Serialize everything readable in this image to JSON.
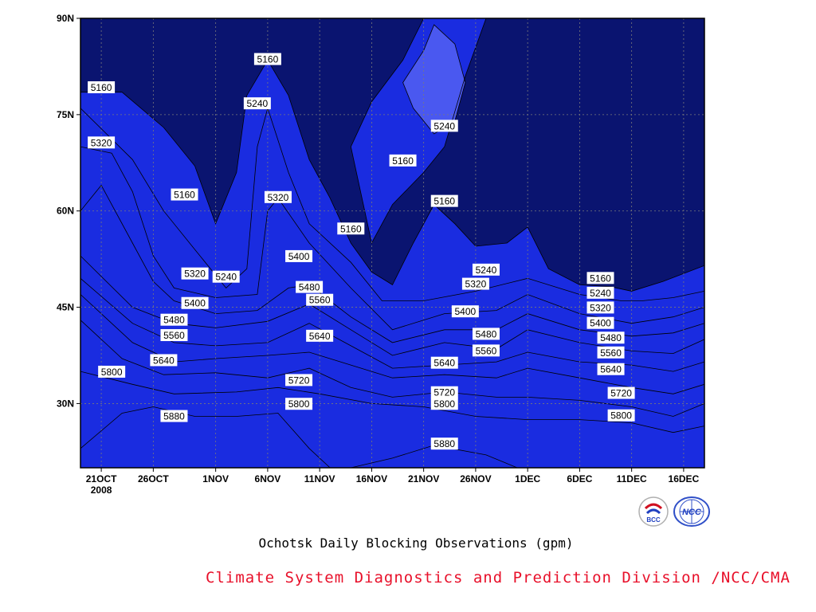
{
  "colors": {
    "bands": [
      "#0a1470",
      "#1a2ce0",
      "#4a58f0",
      "#5890e8",
      "#5cc0f8",
      "#fafa78",
      "#f8dca0",
      "#f8b078",
      "#f88858",
      "#f87078",
      "#f03848"
    ],
    "credit": "#e8102a"
  },
  "chart_data": {
    "type": "heatmap",
    "subtitle": "Ochotsk Daily Blocking Observations (gpm)",
    "credit": "Climate System Diagnostics and Prediction Division /NCC/CMA",
    "x_start_date": "2008-10-19",
    "x_end_date": "2008-12-18",
    "y_range": [
      20,
      90
    ],
    "x_ticks": [
      "21OCT",
      "26OCT",
      "1NOV",
      "6NOV",
      "11NOV",
      "16NOV",
      "21NOV",
      "26NOV",
      "1DEC",
      "6DEC",
      "11DEC",
      "16DEC"
    ],
    "x_tick_dates": [
      "2008-10-21",
      "2008-10-26",
      "2008-11-01",
      "2008-11-06",
      "2008-11-11",
      "2008-11-16",
      "2008-11-21",
      "2008-11-26",
      "2008-12-01",
      "2008-12-06",
      "2008-12-11",
      "2008-12-16"
    ],
    "x_year_label": "2008",
    "y_ticks": [
      {
        "lat": 30,
        "label": "30N"
      },
      {
        "lat": 45,
        "label": "45N"
      },
      {
        "lat": 60,
        "label": "60N"
      },
      {
        "lat": 75,
        "label": "75N"
      },
      {
        "lat": 90,
        "label": "90N"
      }
    ],
    "grid": true,
    "contour_levels": [
      5160,
      5240,
      5320,
      5400,
      5480,
      5560,
      5640,
      5720,
      5800,
      5880
    ],
    "contours": [
      {
        "level": 5880,
        "points": [
          [
            "2008-10-19",
            23
          ],
          [
            "2008-10-23",
            28.5
          ],
          [
            "2008-10-26",
            29.5
          ],
          [
            "2008-10-30",
            28
          ],
          [
            "2008-11-03",
            28
          ],
          [
            "2008-11-07",
            28.5
          ],
          [
            "2008-11-10",
            23
          ],
          [
            "2008-11-12",
            20
          ]
        ]
      },
      {
        "level": 5880,
        "points": [
          [
            "2008-11-14",
            20
          ],
          [
            "2008-11-18",
            21.5
          ],
          [
            "2008-11-22",
            23.5
          ],
          [
            "2008-11-27",
            22
          ],
          [
            "2008-11-30",
            20
          ]
        ]
      },
      {
        "level": 5800,
        "points": [
          [
            "2008-10-19",
            35
          ],
          [
            "2008-10-24",
            33
          ],
          [
            "2008-10-28",
            31.5
          ],
          [
            "2008-11-03",
            31.8
          ],
          [
            "2008-11-07",
            32.5
          ],
          [
            "2008-11-11",
            31.5
          ],
          [
            "2008-11-16",
            30
          ],
          [
            "2008-11-21",
            29.5
          ],
          [
            "2008-11-26",
            28
          ],
          [
            "2008-12-01",
            27.5
          ],
          [
            "2008-12-06",
            27.5
          ],
          [
            "2008-12-11",
            27
          ],
          [
            "2008-12-15",
            25.5
          ],
          [
            "2008-12-18",
            26.5
          ]
        ]
      },
      {
        "level": 5720,
        "points": [
          [
            "2008-10-19",
            43
          ],
          [
            "2008-10-23",
            37
          ],
          [
            "2008-10-27",
            34.5
          ],
          [
            "2008-11-01",
            34.8
          ],
          [
            "2008-11-06",
            34
          ],
          [
            "2008-11-10",
            35.5
          ],
          [
            "2008-11-14",
            32.5
          ],
          [
            "2008-11-18",
            31
          ],
          [
            "2008-11-23",
            31.8
          ],
          [
            "2008-11-28",
            31
          ],
          [
            "2008-12-01",
            31
          ],
          [
            "2008-12-06",
            30.5
          ],
          [
            "2008-12-11",
            29.5
          ],
          [
            "2008-12-15",
            28
          ],
          [
            "2008-12-18",
            30
          ]
        ]
      },
      {
        "level": 5640,
        "points": [
          [
            "2008-10-19",
            47
          ],
          [
            "2008-10-24",
            39.5
          ],
          [
            "2008-10-28",
            36.5
          ],
          [
            "2008-11-01",
            37
          ],
          [
            "2008-11-06",
            37.5
          ],
          [
            "2008-11-10",
            38
          ],
          [
            "2008-11-14",
            36
          ],
          [
            "2008-11-18",
            34
          ],
          [
            "2008-11-23",
            34.5
          ],
          [
            "2008-11-28",
            34
          ],
          [
            "2008-12-01",
            35.5
          ],
          [
            "2008-12-06",
            34
          ],
          [
            "2008-12-11",
            32.5
          ],
          [
            "2008-12-15",
            31.5
          ],
          [
            "2008-12-18",
            33
          ]
        ]
      },
      {
        "level": 5560,
        "points": [
          [
            "2008-10-19",
            49.5
          ],
          [
            "2008-10-24",
            42.5
          ],
          [
            "2008-10-28",
            39.5
          ],
          [
            "2008-11-01",
            39
          ],
          [
            "2008-11-06",
            39.5
          ],
          [
            "2008-11-10",
            42.5
          ],
          [
            "2008-11-14",
            39
          ],
          [
            "2008-11-18",
            35.5
          ],
          [
            "2008-11-23",
            36
          ],
          [
            "2008-11-28",
            36.5
          ],
          [
            "2008-12-01",
            38
          ],
          [
            "2008-12-06",
            36.5
          ],
          [
            "2008-12-11",
            36
          ],
          [
            "2008-12-15",
            35
          ],
          [
            "2008-12-18",
            36.5
          ]
        ]
      },
      {
        "level": 5480,
        "points": [
          [
            "2008-10-19",
            53
          ],
          [
            "2008-10-24",
            45
          ],
          [
            "2008-10-28",
            42.5
          ],
          [
            "2008-11-01",
            41.8
          ],
          [
            "2008-11-06",
            42.8
          ],
          [
            "2008-11-10",
            45.5
          ],
          [
            "2008-11-14",
            41.5
          ],
          [
            "2008-11-18",
            37.5
          ],
          [
            "2008-11-23",
            39.5
          ],
          [
            "2008-11-28",
            38.5
          ],
          [
            "2008-12-01",
            41.5
          ],
          [
            "2008-12-06",
            39.5
          ],
          [
            "2008-12-11",
            38.2
          ],
          [
            "2008-12-15",
            37.8
          ],
          [
            "2008-12-18",
            40
          ]
        ]
      },
      {
        "level": 5400,
        "points": [
          [
            "2008-10-19",
            60
          ],
          [
            "2008-10-21",
            64
          ],
          [
            "2008-10-24",
            55
          ],
          [
            "2008-10-26",
            49
          ],
          [
            "2008-10-28",
            46
          ],
          [
            "2008-11-01",
            44
          ],
          [
            "2008-11-05",
            44.5
          ],
          [
            "2008-11-08",
            48
          ],
          [
            "2008-11-10",
            48.5
          ],
          [
            "2008-11-14",
            43.5
          ],
          [
            "2008-11-18",
            39.5
          ],
          [
            "2008-11-23",
            41.5
          ],
          [
            "2008-11-28",
            41.5
          ],
          [
            "2008-12-01",
            44
          ],
          [
            "2008-12-06",
            41.5
          ],
          [
            "2008-12-11",
            40.5
          ],
          [
            "2008-12-15",
            41
          ],
          [
            "2008-12-18",
            42.5
          ]
        ]
      },
      {
        "level": 5320,
        "points": [
          [
            "2008-10-19",
            70
          ],
          [
            "2008-10-22",
            69
          ],
          [
            "2008-10-24",
            63
          ],
          [
            "2008-10-26",
            53
          ],
          [
            "2008-10-28",
            48
          ],
          [
            "2008-11-01",
            46.5
          ],
          [
            "2008-11-05",
            47
          ],
          [
            "2008-11-06",
            60
          ],
          [
            "2008-11-07",
            62
          ],
          [
            "2008-11-10",
            55
          ],
          [
            "2008-11-14",
            48
          ],
          [
            "2008-11-18",
            41.5
          ],
          [
            "2008-11-23",
            44
          ],
          [
            "2008-11-28",
            44.5
          ],
          [
            "2008-12-01",
            47
          ],
          [
            "2008-12-06",
            44
          ],
          [
            "2008-12-11",
            42.5
          ],
          [
            "2008-12-15",
            43.5
          ],
          [
            "2008-12-18",
            45
          ]
        ]
      },
      {
        "level": 5240,
        "points": [
          [
            "2008-10-19",
            76
          ],
          [
            "2008-10-24",
            68
          ],
          [
            "2008-10-27",
            60
          ],
          [
            "2008-10-30",
            54
          ],
          [
            "2008-11-02",
            48
          ],
          [
            "2008-11-04",
            51
          ],
          [
            "2008-11-05",
            70
          ],
          [
            "2008-11-06",
            76
          ],
          [
            "2008-11-08",
            66
          ],
          [
            "2008-11-10",
            58
          ],
          [
            "2008-11-14",
            52
          ],
          [
            "2008-11-17",
            46
          ],
          [
            "2008-11-21",
            46
          ],
          [
            "2008-11-26",
            47.5
          ],
          [
            "2008-12-01",
            49.5
          ],
          [
            "2008-12-06",
            47
          ],
          [
            "2008-12-10",
            46
          ],
          [
            "2008-12-12",
            46
          ],
          [
            "2008-12-15",
            46.5
          ],
          [
            "2008-12-18",
            47.5
          ]
        ]
      },
      {
        "level": 5160,
        "points": [
          [
            "2008-10-19",
            78.5
          ],
          [
            "2008-10-23",
            78.5
          ],
          [
            "2008-10-27",
            73
          ],
          [
            "2008-10-30",
            67
          ],
          [
            "2008-11-01",
            58
          ],
          [
            "2008-11-03",
            66
          ],
          [
            "2008-11-04",
            78
          ],
          [
            "2008-11-06",
            83.5
          ],
          [
            "2008-11-08",
            78
          ],
          [
            "2008-11-10",
            68
          ],
          [
            "2008-11-12",
            62
          ],
          [
            "2008-11-14",
            55
          ],
          [
            "2008-11-16",
            50.5
          ],
          [
            "2008-11-18",
            48.5
          ],
          [
            "2008-11-20",
            55
          ],
          [
            "2008-11-22",
            61
          ],
          [
            "2008-11-24",
            58
          ],
          [
            "2008-11-26",
            54.5
          ],
          [
            "2008-11-29",
            55
          ],
          [
            "2008-12-01",
            57.5
          ],
          [
            "2008-12-03",
            51
          ],
          [
            "2008-12-06",
            48.5
          ],
          [
            "2008-12-09",
            48.2
          ],
          [
            "2008-12-11",
            47.5
          ],
          [
            "2008-12-14",
            49
          ],
          [
            "2008-12-18",
            51.5
          ]
        ]
      },
      {
        "level": 5160,
        "points": [
          [
            "2008-11-14",
            70
          ],
          [
            "2008-11-16",
            77
          ],
          [
            "2008-11-19",
            83.5
          ],
          [
            "2008-11-21",
            90
          ],
          [
            "2008-11-27",
            90
          ],
          [
            "2008-11-25",
            81
          ],
          [
            "2008-11-23",
            70
          ],
          [
            "2008-11-21",
            66
          ],
          [
            "2008-11-18",
            61
          ],
          [
            "2008-11-16",
            55
          ],
          [
            "2008-11-14",
            70
          ]
        ]
      },
      {
        "level": 5240,
        "points": [
          [
            "2008-11-19",
            80
          ],
          [
            "2008-11-21",
            85
          ],
          [
            "2008-11-22",
            89
          ],
          [
            "2008-11-24",
            86
          ],
          [
            "2008-11-25",
            80
          ],
          [
            "2008-11-24",
            74
          ],
          [
            "2008-11-22",
            72
          ],
          [
            "2008-11-20",
            76
          ],
          [
            "2008-11-19",
            80
          ]
        ]
      }
    ],
    "labels": [
      {
        "date": "2008-10-21",
        "lat": 79.2,
        "text": "5160"
      },
      {
        "date": "2008-10-29",
        "lat": 62.5,
        "text": "5160"
      },
      {
        "date": "2008-11-06",
        "lat": 83.6,
        "text": "5160"
      },
      {
        "date": "2008-11-14",
        "lat": 57.2,
        "text": "5160"
      },
      {
        "date": "2008-11-19",
        "lat": 67.8,
        "text": "5160"
      },
      {
        "date": "2008-11-23",
        "lat": 61.5,
        "text": "5160"
      },
      {
        "date": "2008-12-08",
        "lat": 49.5,
        "text": "5160"
      },
      {
        "date": "2008-11-05",
        "lat": 76.7,
        "text": "5240"
      },
      {
        "date": "2008-11-02",
        "lat": 49.7,
        "text": "5240"
      },
      {
        "date": "2008-11-23",
        "lat": 73.2,
        "text": "5240"
      },
      {
        "date": "2008-11-27",
        "lat": 50.8,
        "text": "5240"
      },
      {
        "date": "2008-12-08",
        "lat": 47.2,
        "text": "5240"
      },
      {
        "date": "2008-10-21",
        "lat": 70.6,
        "text": "5320"
      },
      {
        "date": "2008-10-30",
        "lat": 50.2,
        "text": "5320"
      },
      {
        "date": "2008-11-07",
        "lat": 62.1,
        "text": "5320"
      },
      {
        "date": "2008-11-26",
        "lat": 48.6,
        "text": "5320"
      },
      {
        "date": "2008-12-08",
        "lat": 44.9,
        "text": "5320"
      },
      {
        "date": "2008-10-30",
        "lat": 45.6,
        "text": "5400"
      },
      {
        "date": "2008-11-09",
        "lat": 52.9,
        "text": "5400"
      },
      {
        "date": "2008-11-25",
        "lat": 44.3,
        "text": "5400"
      },
      {
        "date": "2008-12-08",
        "lat": 42.5,
        "text": "5400"
      },
      {
        "date": "2008-10-28",
        "lat": 43.0,
        "text": "5480"
      },
      {
        "date": "2008-11-10",
        "lat": 48.1,
        "text": "5480"
      },
      {
        "date": "2008-11-27",
        "lat": 40.8,
        "text": "5480"
      },
      {
        "date": "2008-12-09",
        "lat": 40.2,
        "text": "5480"
      },
      {
        "date": "2008-10-28",
        "lat": 40.6,
        "text": "5560"
      },
      {
        "date": "2008-11-11",
        "lat": 46.1,
        "text": "5560"
      },
      {
        "date": "2008-11-27",
        "lat": 38.2,
        "text": "5560"
      },
      {
        "date": "2008-12-09",
        "lat": 37.9,
        "text": "5560"
      },
      {
        "date": "2008-10-27",
        "lat": 36.7,
        "text": "5640"
      },
      {
        "date": "2008-11-11",
        "lat": 40.5,
        "text": "5640"
      },
      {
        "date": "2008-11-23",
        "lat": 36.3,
        "text": "5640"
      },
      {
        "date": "2008-12-09",
        "lat": 35.3,
        "text": "5640"
      },
      {
        "date": "2008-11-09",
        "lat": 33.6,
        "text": "5720"
      },
      {
        "date": "2008-11-23",
        "lat": 31.7,
        "text": "5720"
      },
      {
        "date": "2008-12-10",
        "lat": 31.6,
        "text": "5720"
      },
      {
        "date": "2008-10-22",
        "lat": 34.9,
        "text": "5800"
      },
      {
        "date": "2008-11-09",
        "lat": 29.9,
        "text": "5800"
      },
      {
        "date": "2008-11-23",
        "lat": 29.9,
        "text": "5800"
      },
      {
        "date": "2008-12-10",
        "lat": 28.1,
        "text": "5800"
      },
      {
        "date": "2008-10-28",
        "lat": 28.0,
        "text": "5880"
      },
      {
        "date": "2008-11-23",
        "lat": 23.7,
        "text": "5880"
      }
    ]
  },
  "logos": {
    "bcc_text": "BCC",
    "ncc_text": "NCC"
  }
}
